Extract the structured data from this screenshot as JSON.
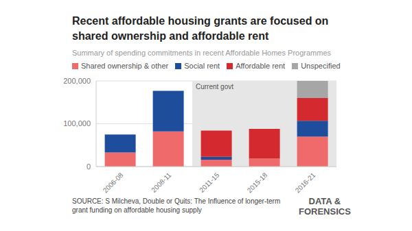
{
  "chart_data": {
    "type": "bar",
    "title": "Recent affordable housing grants are focused on shared ownership and affordable rent",
    "subtitle": "Summary of spending commitments in recent Affordable Homes Programmes",
    "categories": [
      "2006-08",
      "2008-11",
      "2011-15",
      "2015-18",
      "2016-21"
    ],
    "series": [
      {
        "name": "Shared ownership & other",
        "color": "#ef6b6b",
        "values": [
          33000,
          82000,
          16000,
          19000,
          70000
        ]
      },
      {
        "name": "Social rent",
        "color": "#1e4d9c",
        "values": [
          42000,
          95000,
          7000,
          0,
          37000
        ]
      },
      {
        "name": "Affordable rent",
        "color": "#d42a2f",
        "values": [
          0,
          0,
          61000,
          69000,
          53000
        ]
      },
      {
        "name": "Unspecified",
        "color": "#a6a6a6",
        "values": [
          0,
          0,
          0,
          0,
          40000
        ]
      }
    ],
    "stacked": true,
    "grid": true,
    "ylim": [
      0,
      200000
    ],
    "yticks": [
      0,
      {
        "value": 100000,
        "label": "100,000"
      },
      {
        "value": 200000,
        "label": "200,000"
      }
    ],
    "annotation": {
      "text": "Current govt",
      "from": "2011-15",
      "to": "2016-21"
    },
    "source": "SOURCE: S Milcheva, Double or Quits: The Influence of longer-term grant funding on affordable housing supply",
    "credit": [
      "DATA &",
      "FORENSICS"
    ]
  }
}
